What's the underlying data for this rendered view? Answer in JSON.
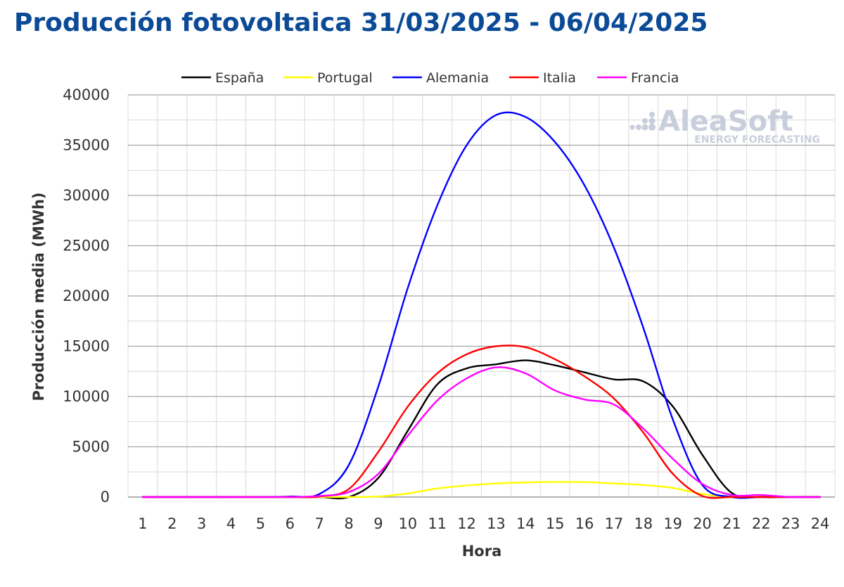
{
  "title": "Producción fotovoltaica 31/03/2025 - 06/04/2025",
  "watermark": {
    "name": "AleaSoft",
    "tagline": "ENERGY FORECASTING"
  },
  "chart_data": {
    "type": "line",
    "xlabel": "Hora",
    "ylabel": "Producción media (MWh)",
    "x": [
      1,
      2,
      3,
      4,
      5,
      6,
      7,
      8,
      9,
      10,
      11,
      12,
      13,
      14,
      15,
      16,
      17,
      18,
      19,
      20,
      21,
      22,
      23,
      24
    ],
    "ylim": [
      0,
      40000
    ],
    "yticks": [
      0,
      5000,
      10000,
      15000,
      20000,
      25000,
      30000,
      35000,
      40000
    ],
    "grid": true,
    "legend_position": "top",
    "series": [
      {
        "name": "España",
        "color": "#000000",
        "values": [
          0,
          0,
          0,
          0,
          0,
          0,
          0,
          0,
          1900,
          6600,
          11200,
          12800,
          13200,
          13600,
          13100,
          12400,
          11700,
          11500,
          9000,
          4200,
          400,
          0,
          0,
          0
        ]
      },
      {
        "name": "Portugal",
        "color": "#ffff00",
        "values": [
          0,
          0,
          0,
          0,
          0,
          0,
          0,
          0,
          50,
          350,
          850,
          1150,
          1350,
          1450,
          1500,
          1480,
          1350,
          1200,
          900,
          300,
          0,
          0,
          0,
          0
        ]
      },
      {
        "name": "Alemania",
        "color": "#0000ff",
        "values": [
          0,
          0,
          0,
          0,
          0,
          50,
          300,
          3200,
          11000,
          20800,
          29000,
          35000,
          38000,
          37800,
          35300,
          31000,
          24800,
          16800,
          7700,
          1200,
          0,
          0,
          0,
          0
        ]
      },
      {
        "name": "Italia",
        "color": "#ff0000",
        "values": [
          0,
          0,
          0,
          0,
          0,
          0,
          50,
          800,
          4500,
          9000,
          12300,
          14200,
          15000,
          14900,
          13700,
          12000,
          9800,
          6400,
          2300,
          100,
          0,
          0,
          0,
          0
        ]
      },
      {
        "name": "Francia",
        "color": "#ff00ff",
        "values": [
          0,
          0,
          0,
          0,
          0,
          0,
          100,
          500,
          2300,
          6100,
          9600,
          11800,
          12900,
          12300,
          10600,
          9700,
          9200,
          6800,
          3800,
          1300,
          200,
          200,
          0,
          0
        ]
      }
    ]
  }
}
